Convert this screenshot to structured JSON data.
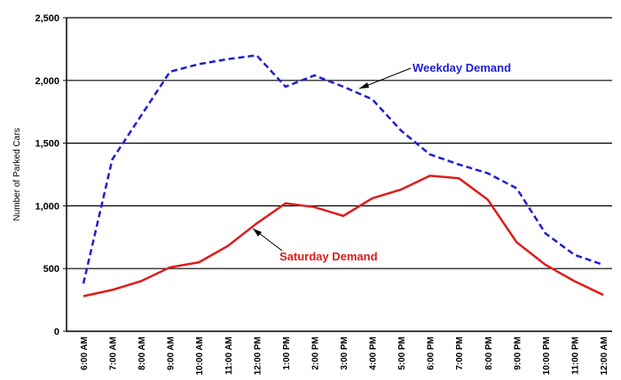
{
  "chart_data": {
    "type": "line",
    "ylabel": "Number of Parked Cars",
    "categories": [
      "6:00 AM",
      "7:00 AM",
      "8:00 AM",
      "9:00 AM",
      "10:00 AM",
      "11:00 AM",
      "12:00 PM",
      "1:00 PM",
      "2:00 PM",
      "3:00 PM",
      "4:00 PM",
      "5:00 PM",
      "6:00 PM",
      "7:00 PM",
      "8:00 PM",
      "9:00 PM",
      "10:00 PM",
      "11:00 PM",
      "12:00 AM"
    ],
    "series": [
      {
        "name": "Weekday Demand",
        "color": "#1f1fd0",
        "line_style": "dashed",
        "values": [
          380,
          1370,
          1720,
          2070,
          2130,
          2170,
          2200,
          1950,
          2040,
          1950,
          1850,
          1600,
          1410,
          1330,
          1260,
          1140,
          780,
          610,
          530
        ]
      },
      {
        "name": "Saturday Demand",
        "color": "#e01b1b",
        "line_style": "solid",
        "values": [
          280,
          330,
          400,
          510,
          550,
          680,
          860,
          1020,
          990,
          920,
          1060,
          1130,
          1240,
          1220,
          1050,
          710,
          530,
          400,
          290
        ]
      }
    ],
    "ylim": [
      0,
      2500
    ],
    "yticks": [
      0,
      500,
      {
        "value": 1000,
        "label": "1,000"
      },
      {
        "value": 1500,
        "label": "1,500"
      },
      {
        "value": 2000,
        "label": "2,000"
      },
      {
        "value": 2500,
        "label": "2,500"
      }
    ],
    "grid": true
  }
}
